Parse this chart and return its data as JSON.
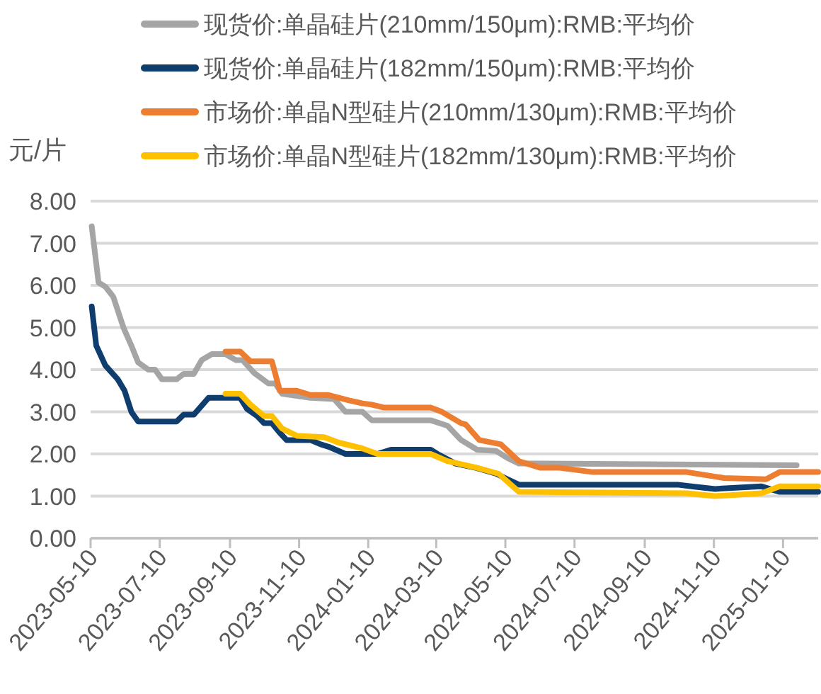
{
  "chart_data": {
    "type": "line",
    "ylabel": "元/片",
    "legend": "top",
    "grid": "y",
    "line_style": "solid",
    "xlim": [
      "2023-05-10",
      "2025-02-10"
    ],
    "xticks": [
      "2023-05-10",
      "2023-07-10",
      "2023-09-10",
      "2023-11-10",
      "2024-01-10",
      "2024-03-10",
      "2024-05-10",
      "2024-07-10",
      "2024-09-10",
      "2024-11-10",
      "2025-01-10"
    ],
    "ylim": [
      0,
      8
    ],
    "yticks": [
      {
        "value": 0,
        "label": "0.00"
      },
      {
        "value": 1,
        "label": "1.00"
      },
      {
        "value": 2,
        "label": "2.00"
      },
      {
        "value": 3,
        "label": "3.00"
      },
      {
        "value": 4,
        "label": "4.00"
      },
      {
        "value": 5,
        "label": "5.00"
      },
      {
        "value": 6,
        "label": "6.00"
      },
      {
        "value": 7,
        "label": "7.00"
      },
      {
        "value": 8,
        "label": "8.00"
      }
    ],
    "series": [
      {
        "name": "现货价:单晶硅片(210mm/150μm):RMB:平均价",
        "color": "#a5a5a5",
        "x": [
          "2023-05-11",
          "2023-05-17",
          "2023-05-23",
          "2023-05-30",
          "2023-06-08",
          "2023-06-15",
          "2023-06-21",
          "2023-06-30",
          "2023-07-06",
          "2023-07-12",
          "2023-07-25",
          "2023-07-31",
          "2023-08-09",
          "2023-08-16",
          "2023-08-25",
          "2023-09-06",
          "2023-09-15",
          "2023-09-21",
          "2023-10-01",
          "2023-10-14",
          "2023-10-20",
          "2023-10-26",
          "2023-11-20",
          "2023-12-11",
          "2023-12-21",
          "2024-01-05",
          "2024-01-13",
          "2024-03-05",
          "2024-03-20",
          "2024-04-01",
          "2024-04-15",
          "2024-05-02",
          "2024-05-12",
          "2024-05-22",
          "2024-06-10",
          "2025-01-22"
        ],
        "values": [
          7.4,
          6.07,
          5.97,
          5.73,
          5.0,
          4.57,
          4.17,
          4.0,
          4.0,
          3.77,
          3.77,
          3.9,
          3.9,
          4.23,
          4.37,
          4.37,
          4.23,
          4.23,
          3.93,
          3.67,
          3.67,
          3.43,
          3.33,
          3.3,
          3.0,
          3.0,
          2.8,
          2.8,
          2.67,
          2.33,
          2.1,
          2.07,
          1.9,
          1.77,
          1.77,
          1.73
        ]
      },
      {
        "name": "现货价:单晶硅片(182mm/150μm):RMB:平均价",
        "color": "#0f3e6e",
        "x": [
          "2023-05-11",
          "2023-05-15",
          "2023-05-23",
          "2023-06-03",
          "2023-06-09",
          "2023-06-15",
          "2023-06-21",
          "2023-07-25",
          "2023-07-31",
          "2023-08-09",
          "2023-08-22",
          "2023-09-19",
          "2023-09-25",
          "2023-10-04",
          "2023-10-10",
          "2023-10-17",
          "2023-10-24",
          "2023-10-30",
          "2023-11-20",
          "2023-11-29",
          "2023-12-06",
          "2023-12-21",
          "2024-01-18",
          "2024-01-30",
          "2024-03-05",
          "2024-03-11",
          "2024-03-27",
          "2024-04-14",
          "2024-05-02",
          "2024-05-12",
          "2024-05-22",
          "2024-10-09",
          "2024-10-21",
          "2024-11-11",
          "2024-12-22",
          "2025-01-07",
          "2025-02-10"
        ],
        "values": [
          5.5,
          4.57,
          4.1,
          3.77,
          3.5,
          3.0,
          2.77,
          2.77,
          2.93,
          2.93,
          3.33,
          3.33,
          3.07,
          2.9,
          2.73,
          2.73,
          2.5,
          2.33,
          2.33,
          2.23,
          2.17,
          2.0,
          2.0,
          2.1,
          2.1,
          2.0,
          1.77,
          1.67,
          1.53,
          1.4,
          1.27,
          1.27,
          1.23,
          1.17,
          1.23,
          1.1,
          1.1
        ]
      },
      {
        "name": "市场价:单晶N型硅片(210mm/130μm):RMB:平均价",
        "color": "#ed7d31",
        "x": [
          "2023-09-06",
          "2023-09-19",
          "2023-09-28",
          "2023-10-17",
          "2023-10-24",
          "2023-11-08",
          "2023-11-20",
          "2023-12-06",
          "2023-12-24",
          "2024-01-05",
          "2024-01-13",
          "2024-01-24",
          "2024-03-05",
          "2024-03-15",
          "2024-04-01",
          "2024-04-05",
          "2024-04-17",
          "2024-05-06",
          "2024-05-22",
          "2024-06-10",
          "2024-06-27",
          "2024-07-26",
          "2024-10-17",
          "2024-11-19",
          "2024-12-26",
          "2025-01-07",
          "2025-02-10"
        ],
        "values": [
          4.43,
          4.43,
          4.2,
          4.2,
          3.5,
          3.5,
          3.4,
          3.4,
          3.27,
          3.2,
          3.17,
          3.1,
          3.1,
          3.0,
          2.73,
          2.7,
          2.33,
          2.23,
          1.83,
          1.67,
          1.67,
          1.57,
          1.57,
          1.43,
          1.4,
          1.57,
          1.57
        ]
      },
      {
        "name": "市场价:单晶N型硅片(182mm/130μm):RMB:平均价",
        "color": "#ffc000",
        "x": [
          "2023-09-06",
          "2023-09-19",
          "2023-09-28",
          "2023-10-10",
          "2023-10-17",
          "2023-10-26",
          "2023-11-08",
          "2023-12-02",
          "2023-12-15",
          "2024-01-05",
          "2024-01-18",
          "2024-03-05",
          "2024-03-20",
          "2024-04-15",
          "2024-05-04",
          "2024-05-22",
          "2024-10-17",
          "2024-11-11",
          "2024-12-22",
          "2025-01-07",
          "2025-02-10"
        ],
        "values": [
          3.43,
          3.43,
          3.17,
          2.9,
          2.9,
          2.6,
          2.43,
          2.4,
          2.27,
          2.13,
          2.0,
          2.0,
          1.83,
          1.67,
          1.53,
          1.1,
          1.07,
          1.0,
          1.07,
          1.23,
          1.23
        ]
      }
    ]
  }
}
